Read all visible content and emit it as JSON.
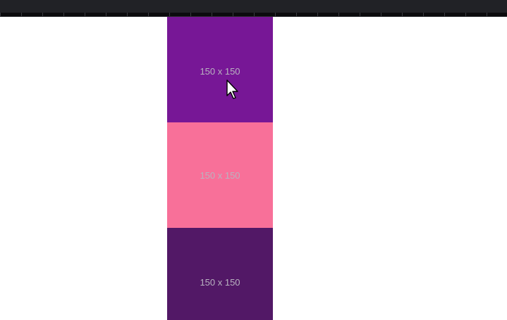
{
  "placeholders": [
    {
      "label": "150 x 150",
      "color": "#771796"
    },
    {
      "label": "150 x 150",
      "color": "#f87099"
    },
    {
      "label": "150 x 150",
      "color": "#521866"
    }
  ],
  "colors": {
    "topbar": "#212226",
    "label_text": "#b9b3c0",
    "background": "#ffffff"
  },
  "cursor": {
    "icon": "mouse-pointer-icon"
  }
}
